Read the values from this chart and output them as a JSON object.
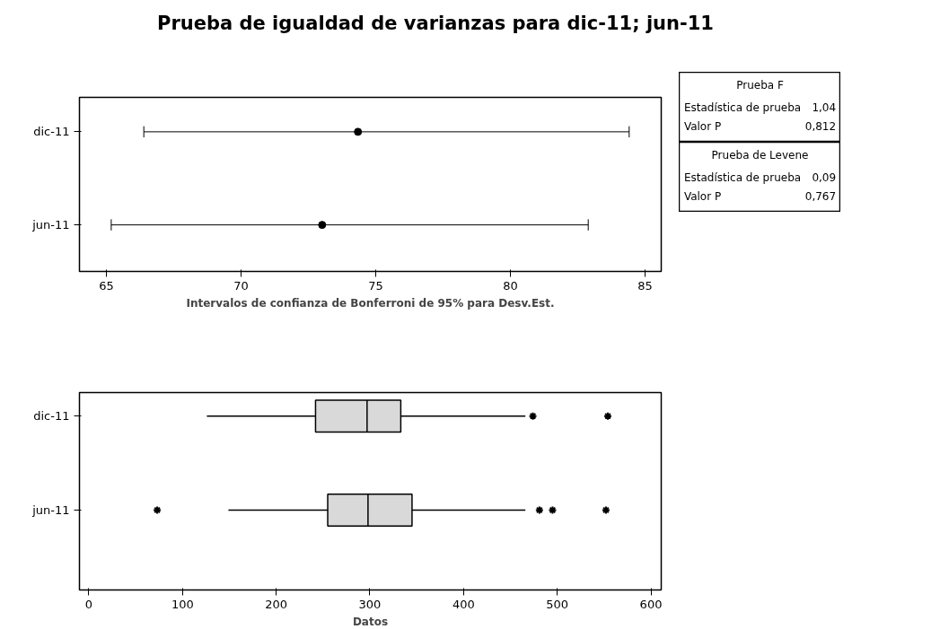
{
  "chart_data": [
    {
      "type": "scatter",
      "title": "Prueba de igualdad de varianzas para dic-11; jun-11",
      "orientation": "horizontal",
      "xlabel": "Intervalos de confianza de Bonferroni de 95% para Desv.Est.",
      "categories": [
        "dic-11",
        "jun-11"
      ],
      "values": [
        74.34,
        73.01
      ],
      "errors": [
        [
          66.39,
          84.41
        ],
        [
          65.18,
          82.89
        ]
      ],
      "color": "#000000",
      "marker": "circle",
      "xlim": [
        64,
        85.6
      ],
      "xticks": [
        65,
        70,
        75,
        80,
        85
      ]
    },
    {
      "type": "box",
      "orientation": "horizontal",
      "xlabel": "Datos",
      "categories": [
        "dic-11",
        "jun-11"
      ],
      "color": "#d9d9d9",
      "boxes": [
        {
          "low": 126,
          "q1": 242,
          "median": 297,
          "q3": 333,
          "high": 466,
          "outliers": [
            474,
            554
          ]
        },
        {
          "low": 149,
          "q1": 255,
          "median": 298,
          "q3": 345,
          "high": 466,
          "outliers": [
            73,
            481,
            495,
            552
          ]
        }
      ],
      "xlim": [
        -10,
        611
      ],
      "xticks": [
        0,
        100,
        200,
        300,
        400,
        500,
        600
      ]
    },
    {
      "type": "other",
      "title": "Prueba F",
      "annotations": [
        "Estadística de prueba",
        "1,04",
        "Valor P",
        "0,812"
      ]
    },
    {
      "type": "other",
      "title": "Prueba de Levene",
      "annotations": [
        "Estadística de prueba",
        "0,09",
        "Valor P",
        "0,767"
      ]
    }
  ]
}
